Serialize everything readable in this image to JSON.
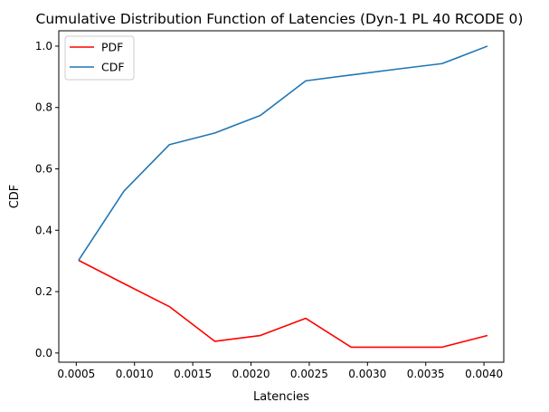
{
  "chart_data": {
    "type": "line",
    "title": "Cumulative Distribution Function of Latencies (Dyn-1 PL 40 RCODE 0)",
    "xlabel": "Latencies",
    "ylabel": "CDF",
    "xlim": [
      0.00035,
      0.00417
    ],
    "ylim": [
      -0.03,
      1.05
    ],
    "xticks": [
      0.0005,
      0.001,
      0.0015,
      0.002,
      0.0025,
      0.003,
      0.0035,
      0.004
    ],
    "xtick_labels": [
      "0.0005",
      "0.0010",
      "0.0015",
      "0.0020",
      "0.0025",
      "0.0030",
      "0.0035",
      "0.0040"
    ],
    "yticks": [
      0.0,
      0.2,
      0.4,
      0.6,
      0.8,
      1.0
    ],
    "ytick_labels": [
      "0.0",
      "0.2",
      "0.4",
      "0.6",
      "0.8",
      "1.0"
    ],
    "grid": false,
    "legend_position": "top-left",
    "series": [
      {
        "name": "PDF",
        "color": "#ff0000",
        "x": [
          0.00052,
          0.00091,
          0.0013,
          0.00169,
          0.00208,
          0.00247,
          0.00286,
          0.00325,
          0.00364,
          0.00403
        ],
        "y": [
          0.302,
          0.226,
          0.151,
          0.038,
          0.057,
          0.113,
          0.019,
          0.019,
          0.019,
          0.057
        ]
      },
      {
        "name": "CDF",
        "color": "#1f77b4",
        "x": [
          0.00052,
          0.00091,
          0.0013,
          0.00169,
          0.00208,
          0.00247,
          0.00286,
          0.00325,
          0.00364,
          0.00403
        ],
        "y": [
          0.302,
          0.528,
          0.679,
          0.717,
          0.774,
          0.887,
          0.906,
          0.925,
          0.943,
          1.0
        ]
      }
    ]
  }
}
